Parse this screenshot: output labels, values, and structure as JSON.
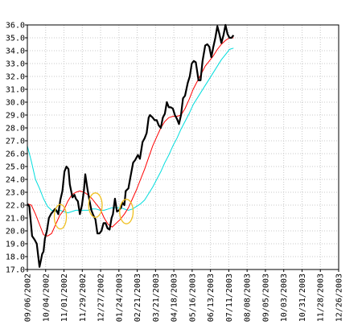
{
  "chart_data": {
    "type": "line",
    "ylim": [
      17.0,
      36.0
    ],
    "y_ticks": [
      "17.0",
      "18.0",
      "19.0",
      "20.0",
      "21.0",
      "22.0",
      "23.0",
      "24.0",
      "25.0",
      "26.0",
      "27.0",
      "28.0",
      "29.0",
      "30.0",
      "31.0",
      "32.0",
      "33.0",
      "34.0",
      "35.0",
      "36.0"
    ],
    "x_tick_labels": [
      "09/06/2002",
      "10/04/2002",
      "11/01/2002",
      "11/29/2002",
      "12/27/2002",
      "01/24/2003",
      "02/21/2003",
      "03/21/2003",
      "04/18/2003",
      "05/16/2003",
      "06/13/2003",
      "07/11/2003",
      "08/08/2003",
      "09/05/2003",
      "10/03/2003",
      "10/31/2003",
      "11/28/2003",
      "12/26/2003"
    ],
    "x_range_days": [
      0,
      462
    ],
    "grid": true,
    "legend": "none",
    "series": [
      {
        "color": "#000000",
        "points": [
          [
            0,
            22.1
          ],
          [
            3,
            21.9
          ],
          [
            7,
            19.6
          ],
          [
            11,
            19.3
          ],
          [
            14,
            19.0
          ],
          [
            18,
            17.2
          ],
          [
            20,
            17.7
          ],
          [
            22,
            18.2
          ],
          [
            24,
            18.4
          ],
          [
            26,
            19.4
          ],
          [
            29,
            20.0
          ],
          [
            32,
            21.0
          ],
          [
            35,
            21.3
          ],
          [
            38,
            21.5
          ],
          [
            41,
            21.7
          ],
          [
            43,
            21.6
          ],
          [
            46,
            21.3
          ],
          [
            49,
            22.4
          ],
          [
            52,
            23.1
          ],
          [
            55,
            24.6
          ],
          [
            58,
            25.0
          ],
          [
            61,
            24.8
          ],
          [
            63,
            23.6
          ],
          [
            67,
            22.6
          ],
          [
            70,
            22.8
          ],
          [
            72,
            22.5
          ],
          [
            75,
            22.3
          ],
          [
            78,
            21.3
          ],
          [
            81,
            22.0
          ],
          [
            84,
            23.2
          ],
          [
            86,
            24.4
          ],
          [
            89,
            23.3
          ],
          [
            92,
            22.4
          ],
          [
            95,
            21.6
          ],
          [
            98,
            21.2
          ],
          [
            101,
            20.9
          ],
          [
            104,
            19.8
          ],
          [
            107,
            19.8
          ],
          [
            110,
            20.0
          ],
          [
            113,
            20.6
          ],
          [
            116,
            20.6
          ],
          [
            119,
            20.2
          ],
          [
            122,
            20.1
          ],
          [
            125,
            21.0
          ],
          [
            127,
            21.3
          ],
          [
            130,
            22.5
          ],
          [
            133,
            21.5
          ],
          [
            136,
            21.6
          ],
          [
            139,
            21.8
          ],
          [
            141,
            22.2
          ],
          [
            144,
            22.0
          ],
          [
            146,
            23.1
          ],
          [
            150,
            23.3
          ],
          [
            153,
            24.2
          ],
          [
            157,
            25.3
          ],
          [
            160,
            25.5
          ],
          [
            164,
            25.9
          ],
          [
            167,
            25.6
          ],
          [
            171,
            26.9
          ],
          [
            174,
            27.2
          ],
          [
            177,
            27.6
          ],
          [
            180,
            28.8
          ],
          [
            182,
            29.0
          ],
          [
            186,
            28.8
          ],
          [
            189,
            28.6
          ],
          [
            192,
            28.6
          ],
          [
            195,
            28.2
          ],
          [
            198,
            28.0
          ],
          [
            201,
            28.8
          ],
          [
            204,
            29.1
          ],
          [
            207,
            30.0
          ],
          [
            210,
            29.6
          ],
          [
            213,
            29.6
          ],
          [
            216,
            29.5
          ],
          [
            219,
            29.0
          ],
          [
            222,
            28.7
          ],
          [
            225,
            28.3
          ],
          [
            228,
            29.0
          ],
          [
            231,
            30.3
          ],
          [
            234,
            30.5
          ],
          [
            238,
            31.5
          ],
          [
            241,
            32.0
          ],
          [
            244,
            33.0
          ],
          [
            247,
            33.2
          ],
          [
            250,
            33.1
          ],
          [
            254,
            31.7
          ],
          [
            257,
            31.7
          ],
          [
            260,
            33.2
          ],
          [
            264,
            34.4
          ],
          [
            267,
            34.5
          ],
          [
            270,
            34.3
          ],
          [
            273,
            33.5
          ],
          [
            276,
            34.3
          ],
          [
            279,
            35.0
          ],
          [
            282,
            35.9
          ],
          [
            285,
            35.3
          ],
          [
            288,
            34.6
          ],
          [
            291,
            35.2
          ],
          [
            294,
            36.0
          ],
          [
            297,
            35.3
          ],
          [
            300,
            35.0
          ],
          [
            303,
            35.0
          ],
          [
            306,
            35.2
          ]
        ]
      },
      {
        "color": "#ff0000",
        "points": [
          [
            0,
            22.1
          ],
          [
            6,
            22.0
          ],
          [
            12,
            21.3
          ],
          [
            18,
            20.5
          ],
          [
            24,
            19.7
          ],
          [
            30,
            19.6
          ],
          [
            36,
            19.8
          ],
          [
            42,
            20.5
          ],
          [
            48,
            21.2
          ],
          [
            54,
            21.6
          ],
          [
            60,
            22.3
          ],
          [
            66,
            22.8
          ],
          [
            72,
            23.0
          ],
          [
            78,
            23.1
          ],
          [
            84,
            23.0
          ],
          [
            90,
            22.8
          ],
          [
            96,
            22.5
          ],
          [
            102,
            22.1
          ],
          [
            108,
            21.7
          ],
          [
            114,
            21.0
          ],
          [
            120,
            20.5
          ],
          [
            126,
            20.3
          ],
          [
            132,
            20.6
          ],
          [
            138,
            20.9
          ],
          [
            144,
            21.3
          ],
          [
            150,
            21.8
          ],
          [
            156,
            22.5
          ],
          [
            162,
            23.2
          ],
          [
            168,
            24.0
          ],
          [
            174,
            24.8
          ],
          [
            180,
            25.7
          ],
          [
            186,
            26.6
          ],
          [
            192,
            27.3
          ],
          [
            198,
            28.0
          ],
          [
            204,
            28.5
          ],
          [
            210,
            28.8
          ],
          [
            216,
            28.9
          ],
          [
            222,
            28.9
          ],
          [
            228,
            29.0
          ],
          [
            234,
            29.5
          ],
          [
            240,
            30.2
          ],
          [
            246,
            31.0
          ],
          [
            252,
            31.6
          ],
          [
            258,
            32.2
          ],
          [
            264,
            32.8
          ],
          [
            270,
            33.2
          ],
          [
            276,
            33.6
          ],
          [
            282,
            34.1
          ],
          [
            288,
            34.5
          ],
          [
            294,
            34.8
          ],
          [
            300,
            35.0
          ],
          [
            306,
            35.0
          ]
        ]
      },
      {
        "color": "#00dddd",
        "points": [
          [
            0,
            26.6
          ],
          [
            6,
            25.4
          ],
          [
            12,
            24.0
          ],
          [
            18,
            23.3
          ],
          [
            24,
            22.5
          ],
          [
            30,
            21.9
          ],
          [
            36,
            21.6
          ],
          [
            42,
            21.5
          ],
          [
            48,
            21.6
          ],
          [
            54,
            21.5
          ],
          [
            60,
            21.4
          ],
          [
            66,
            21.5
          ],
          [
            72,
            21.6
          ],
          [
            78,
            21.6
          ],
          [
            84,
            21.6
          ],
          [
            90,
            21.6
          ],
          [
            96,
            21.7
          ],
          [
            102,
            21.7
          ],
          [
            108,
            21.6
          ],
          [
            114,
            21.6
          ],
          [
            120,
            21.7
          ],
          [
            126,
            21.8
          ],
          [
            132,
            21.8
          ],
          [
            138,
            21.8
          ],
          [
            144,
            21.7
          ],
          [
            150,
            21.6
          ],
          [
            156,
            21.7
          ],
          [
            162,
            21.9
          ],
          [
            168,
            22.1
          ],
          [
            174,
            22.4
          ],
          [
            180,
            22.9
          ],
          [
            186,
            23.4
          ],
          [
            192,
            24.0
          ],
          [
            198,
            24.6
          ],
          [
            204,
            25.3
          ],
          [
            210,
            25.9
          ],
          [
            216,
            26.6
          ],
          [
            222,
            27.2
          ],
          [
            228,
            27.9
          ],
          [
            234,
            28.5
          ],
          [
            240,
            29.1
          ],
          [
            246,
            29.8
          ],
          [
            252,
            30.3
          ],
          [
            258,
            30.8
          ],
          [
            264,
            31.3
          ],
          [
            270,
            31.8
          ],
          [
            276,
            32.3
          ],
          [
            282,
            32.8
          ],
          [
            288,
            33.3
          ],
          [
            294,
            33.7
          ],
          [
            300,
            34.1
          ],
          [
            306,
            34.2
          ]
        ]
      }
    ],
    "annotations": [
      {
        "shape": "ellipse",
        "color": "#f0c020",
        "center": [
          49,
          21.1
        ],
        "radius": [
          9,
          0.95
        ]
      },
      {
        "shape": "ellipse",
        "color": "#f0c020",
        "center": [
          101,
          22.0
        ],
        "radius": [
          10,
          0.95
        ]
      },
      {
        "shape": "ellipse",
        "color": "#f0c020",
        "center": [
          147,
          21.5
        ],
        "radius": [
          10,
          0.95
        ]
      }
    ]
  }
}
